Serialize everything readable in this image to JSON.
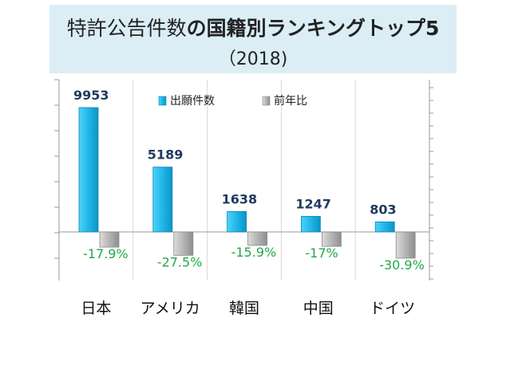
{
  "chart_data": {
    "type": "bar",
    "title_part1": "特許公告件数",
    "title_part2": "の国籍別",
    "title_part3": "ランキングトップ5",
    "subtitle": "（2018)",
    "categories": [
      "日本",
      "アメリカ",
      "韓国",
      "中国",
      "ドイツ"
    ],
    "series": [
      {
        "name": "出願件数",
        "values": [
          9953,
          5189,
          1638,
          1247,
          803
        ],
        "labels": [
          "9953",
          "5189",
          "1638",
          "1247",
          "803"
        ],
        "color": "#1fb6e8"
      },
      {
        "name": "前年比",
        "values": [
          -17.9,
          -27.5,
          -15.9,
          -17,
          -30.9
        ],
        "labels": [
          "-17.9%",
          "-27.5%",
          "-15.9%",
          "-17%",
          "-30.9%"
        ],
        "color": "#b0b0b0"
      }
    ],
    "legend_position": "top-center",
    "grid": "vertical",
    "label_color_positive": "#1f3a5c",
    "label_color_negative": "#22a84a"
  }
}
